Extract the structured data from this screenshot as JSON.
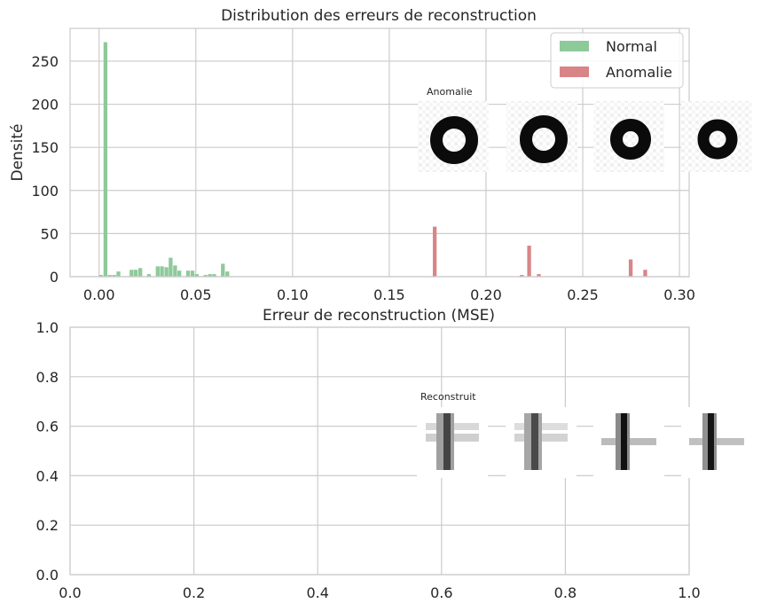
{
  "chart_data": [
    {
      "type": "bar",
      "title": "Distribution des erreurs de reconstruction",
      "xlabel": "Erreur de reconstruction (MSE)",
      "ylabel": "Densité",
      "xlim": [
        -0.015,
        0.305
      ],
      "ylim": [
        0,
        288
      ],
      "xticks": [
        "0.00",
        "0.05",
        "0.10",
        "0.15",
        "0.20",
        "0.25",
        "0.30"
      ],
      "xtick_values": [
        0,
        0.05,
        0.1,
        0.15,
        0.2,
        0.25,
        0.3
      ],
      "yticks": [
        "0",
        "50",
        "100",
        "150",
        "200",
        "250"
      ],
      "ytick_values": [
        0,
        50,
        100,
        150,
        200,
        250
      ],
      "bin_width": 0.00225,
      "legend_position": "top-right",
      "series": [
        {
          "name": "Normal",
          "color": "#8ec99a",
          "bins": [
            {
              "x": 0.0,
              "y": 2
            },
            {
              "x": 0.0023,
              "y": 272
            },
            {
              "x": 0.0045,
              "y": 2
            },
            {
              "x": 0.0068,
              "y": 2
            },
            {
              "x": 0.009,
              "y": 6
            },
            {
              "x": 0.0158,
              "y": 8
            },
            {
              "x": 0.018,
              "y": 8
            },
            {
              "x": 0.0203,
              "y": 10
            },
            {
              "x": 0.0248,
              "y": 3
            },
            {
              "x": 0.0293,
              "y": 12
            },
            {
              "x": 0.0315,
              "y": 12
            },
            {
              "x": 0.0338,
              "y": 11
            },
            {
              "x": 0.036,
              "y": 22
            },
            {
              "x": 0.0383,
              "y": 13
            },
            {
              "x": 0.0405,
              "y": 7
            },
            {
              "x": 0.045,
              "y": 7
            },
            {
              "x": 0.0473,
              "y": 7
            },
            {
              "x": 0.0495,
              "y": 3
            },
            {
              "x": 0.054,
              "y": 2
            },
            {
              "x": 0.0563,
              "y": 3
            },
            {
              "x": 0.0585,
              "y": 3
            },
            {
              "x": 0.063,
              "y": 15
            },
            {
              "x": 0.0653,
              "y": 6
            }
          ]
        },
        {
          "name": "Anomalie",
          "color": "#d98588",
          "bins": [
            {
              "x": 0.1725,
              "y": 58
            },
            {
              "x": 0.2175,
              "y": 2
            },
            {
              "x": 0.2213,
              "y": 36
            },
            {
              "x": 0.2263,
              "y": 3
            },
            {
              "x": 0.2738,
              "y": 20
            },
            {
              "x": 0.2813,
              "y": 8
            }
          ]
        }
      ],
      "annotation": "Anomalie"
    },
    {
      "type": "scatter",
      "title": "",
      "xlabel": "",
      "ylabel": "",
      "xlim": [
        0,
        1
      ],
      "ylim": [
        0,
        1
      ],
      "xticks": [
        "0.0",
        "0.2",
        "0.4",
        "0.6",
        "0.8",
        "1.0"
      ],
      "xtick_values": [
        0,
        0.2,
        0.4,
        0.6,
        0.8,
        1.0
      ],
      "yticks": [
        "0.0",
        "0.2",
        "0.4",
        "0.6",
        "0.8",
        "1.0"
      ],
      "ytick_values": [
        0,
        0.2,
        0.4,
        0.6,
        0.8,
        1.0
      ],
      "series": [],
      "annotation": "Reconstruit"
    }
  ]
}
